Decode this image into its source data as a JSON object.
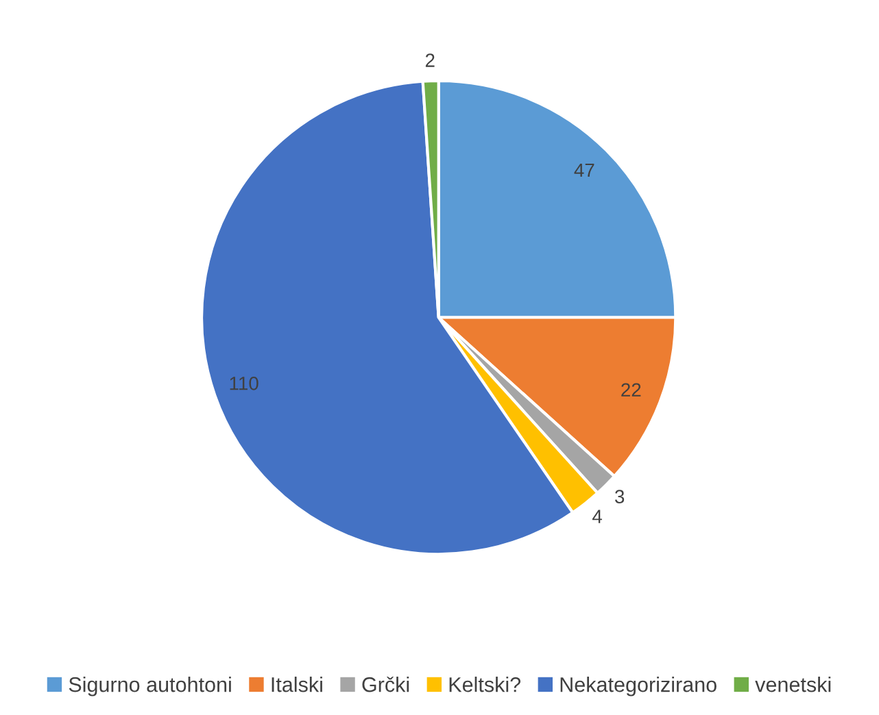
{
  "chart_data": {
    "type": "pie",
    "categories": [
      "Sigurno autohtoni",
      "Italski",
      "Grčki",
      "Keltski?",
      "Nekategorizirano",
      "venetski"
    ],
    "values": [
      47,
      22,
      3,
      4,
      110,
      2
    ],
    "colors": [
      "#5b9bd5",
      "#ed7d31",
      "#a5a5a5",
      "#ffc000",
      "#4472c4",
      "#70ad47"
    ],
    "data_labels": true,
    "legend": "bottom"
  }
}
